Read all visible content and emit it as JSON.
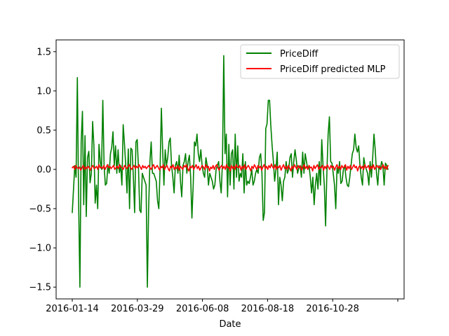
{
  "chart_data": {
    "type": "line",
    "xlabel": "Date",
    "ylabel": "",
    "title": "",
    "x_tick_labels": [
      "2016-01-14",
      "2016-03-29",
      "2016-06-08",
      "2016-08-18",
      "2016-10-28",
      ""
    ],
    "yticks": [
      -1.5,
      -1.0,
      -0.5,
      0.0,
      0.5,
      1.0,
      1.5
    ],
    "ytick_labels": [
      "−1.5",
      "−1.0",
      "−0.5",
      "0.0",
      "0.5",
      "1.0",
      "1.5"
    ],
    "ylim": [
      -1.65,
      1.65
    ],
    "grid": false,
    "legend_position": "top-right",
    "series": [
      {
        "name": "PriceDiff",
        "color": "#008000",
        "values": [
          -0.55,
          -0.25,
          0.05,
          -0.1,
          1.17,
          -0.4,
          -1.5,
          0.35,
          0.74,
          -0.45,
          0.43,
          -0.6,
          0.15,
          0.23,
          -0.17,
          -0.05,
          0.61,
          0.3,
          -0.43,
          -0.2,
          -0.5,
          0.32,
          0.1,
          0.0,
          0.88,
          0.05,
          -0.2,
          -0.18,
          0.06,
          -0.05,
          0.2,
          0.28,
          0.48,
          0.05,
          0.3,
          -0.05,
          0.25,
          -0.04,
          0.05,
          -0.2,
          0.57,
          0.33,
          0.05,
          -0.3,
          0.26,
          -0.5,
          0.27,
          0.25,
          -0.1,
          -0.55,
          0.35,
          0.38,
          0.03,
          -0.52,
          -0.55,
          -0.05,
          -0.1,
          -0.15,
          -0.2,
          -1.5,
          -0.5,
          0.1,
          0.35,
          -0.05,
          -0.05,
          -0.1,
          -0.15,
          -0.4,
          -0.5,
          0.02,
          0.78,
          0.25,
          -0.2,
          0.25,
          0.05,
          0.15,
          0.35,
          0.4,
          0.05,
          -0.1,
          -0.3,
          0.05,
          0.1,
          -0.05,
          0.18,
          -0.15,
          -0.35,
          0.05,
          0.1,
          0.2,
          -0.05,
          0.1,
          0.18,
          -0.1,
          -0.62,
          -0.2,
          0.35,
          0.3,
          0.45,
          0.2,
          0.1,
          0.25,
          0.05,
          -0.05,
          -0.1,
          0.15,
          0.05,
          -0.2,
          -0.05,
          -0.1,
          -0.15,
          -0.25,
          -0.2,
          0.0,
          0.05,
          0.1,
          -0.15,
          -0.3,
          0.1,
          1.45,
          0.2,
          0.45,
          -0.35,
          0.32,
          -0.2,
          0.2,
          0.25,
          -0.25,
          0.45,
          -0.1,
          0.3,
          -0.15,
          -0.05,
          -0.1,
          0.2,
          -0.3,
          0.1,
          -0.2,
          -0.15,
          -0.18,
          -0.1,
          0.0,
          -0.2,
          -0.15,
          -0.05,
          0.0,
          -0.05,
          0.15,
          0.2,
          -0.05,
          -0.65,
          -0.55,
          0.52,
          0.58,
          0.88,
          0.88,
          0.55,
          0.3,
          0.1,
          -0.15,
          0.0,
          0.22,
          -0.45,
          -0.1,
          -0.2,
          -0.4,
          -0.15,
          -0.1,
          0.1,
          -0.05,
          0.0,
          0.15,
          0.2,
          -0.1,
          0.1,
          0.25,
          0.12,
          -0.05,
          0.02,
          0.05,
          -0.1,
          0.22,
          -0.05,
          0.2,
          0.1,
          0.0,
          0.05,
          -0.1,
          -0.3,
          -0.1,
          -0.45,
          -0.2,
          -0.05,
          -0.25,
          0.1,
          -0.2,
          0.38,
          0.05,
          -0.2,
          -0.72,
          -0.05,
          0.45,
          0.67,
          0.1,
          0.08,
          -0.05,
          -0.2,
          -0.5,
          0.02,
          -0.05,
          0.1,
          -0.18,
          -0.15,
          0.0,
          0.05,
          -0.1,
          -0.2,
          -0.22,
          -0.1,
          0.05,
          0.2,
          0.25,
          0.45,
          0.28,
          0.22,
          0.3,
          0.05,
          -0.1,
          -0.2,
          0.15,
          0.05,
          0.0,
          -0.05,
          -0.2,
          0.1,
          -0.1,
          0.15,
          0.45,
          0.25,
          -0.05,
          -0.2,
          0.05,
          0.0,
          0.1,
          0.05,
          -0.2,
          0.08,
          0.05,
          0.0
        ],
        "values_note": ""
      },
      {
        "name": "PriceDiff predicted MLP",
        "color": "#ff0000",
        "values": [
          0.02,
          0.04,
          0.0,
          0.05,
          0.02,
          0.01,
          0.03,
          -0.01,
          0.02,
          0.05,
          0.0,
          0.03,
          0.01,
          0.04,
          0.02,
          -0.01,
          0.03,
          0.05,
          0.01,
          0.02,
          0.04,
          0.0,
          0.06,
          0.02,
          0.03,
          0.01,
          0.05,
          0.0,
          0.03,
          0.06,
          0.02,
          0.04,
          0.01,
          0.03,
          0.05,
          0.0,
          0.02,
          0.04,
          0.01,
          0.06,
          0.03,
          0.02,
          0.0,
          0.05,
          0.03,
          0.01,
          0.04,
          0.06,
          0.02,
          0.0,
          0.03,
          0.05,
          0.01,
          0.04,
          0.02,
          0.06,
          0.03,
          0.0,
          0.05,
          0.02,
          0.04,
          0.01,
          0.03,
          0.05,
          0.02,
          0.0,
          0.04,
          0.06,
          0.01,
          0.03,
          0.05,
          0.02,
          -0.01,
          0.04,
          0.02,
          0.06,
          0.0,
          0.03,
          0.05,
          0.01,
          -0.02,
          0.04,
          0.02,
          0.06,
          0.0,
          0.03,
          0.01,
          0.05,
          -0.01,
          0.04,
          0.02,
          0.0,
          0.05,
          0.03,
          0.06,
          0.01,
          -0.02,
          0.04,
          0.02,
          0.05,
          0.0,
          0.03,
          0.06,
          0.01,
          0.04,
          -0.01,
          0.02,
          0.05,
          0.03,
          0.0,
          0.06,
          0.02,
          0.04,
          -0.02,
          0.03,
          0.01,
          0.05,
          0.0,
          0.04,
          0.06,
          0.02,
          -0.01,
          0.03,
          0.05,
          0.01,
          0.04,
          0.0,
          0.06,
          0.02,
          0.03,
          -0.02,
          0.05,
          0.01,
          0.04,
          0.0,
          0.06,
          0.03,
          0.02,
          0.05,
          -0.01,
          0.04,
          0.01,
          0.06,
          0.0,
          0.03,
          0.05,
          0.02,
          -0.02,
          0.04,
          0.01,
          0.06,
          0.03,
          0.0,
          0.05,
          0.02,
          0.04,
          -0.01,
          0.03,
          0.06,
          0.01,
          0.04,
          0.0,
          0.05,
          0.02,
          0.07,
          0.03,
          0.01,
          0.06,
          0.0,
          0.04,
          0.02,
          0.05,
          -0.01,
          0.03,
          0.06,
          0.01,
          0.04,
          0.0,
          0.05,
          0.02,
          -0.02,
          0.04,
          0.01,
          0.06,
          0.03,
          0.0,
          0.05,
          0.02,
          0.04,
          -0.01,
          0.03,
          0.06,
          0.01,
          0.04,
          0.0,
          0.05,
          0.02,
          0.03,
          -0.02,
          0.05,
          0.01,
          0.04,
          0.06,
          0.0,
          0.03,
          0.02,
          0.05,
          -0.01,
          0.04,
          0.01,
          0.06,
          0.03,
          0.0,
          0.05,
          0.02,
          0.04,
          -0.01,
          0.03,
          0.06,
          0.01,
          0.04,
          0.0,
          0.05,
          0.02,
          0.03,
          0.06,
          -0.01,
          0.04,
          0.01,
          0.05,
          0.0,
          0.03,
          0.06,
          0.02,
          0.04,
          -0.02,
          0.03,
          0.05,
          0.01,
          0.04,
          0.0,
          0.06,
          0.02,
          0.03,
          0.05,
          -0.01,
          0.04,
          0.01,
          0.06,
          0.0,
          0.03,
          0.05,
          0.02,
          0.04,
          0.0,
          0.03,
          0.06,
          0.01,
          0.04,
          0.0,
          0.05
        ]
      }
    ]
  }
}
